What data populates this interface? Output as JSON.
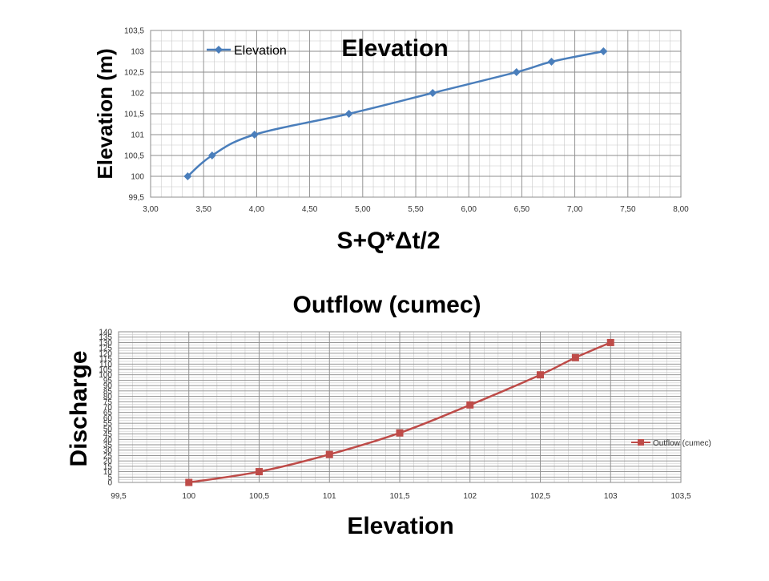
{
  "chart_data": [
    {
      "type": "line",
      "title": "Elevation",
      "xlabel": "S+Q*Δt/2",
      "ylabel": "Elevation (m)",
      "xlim": [
        3.0,
        8.0
      ],
      "ylim": [
        99.5,
        103.5
      ],
      "x_ticks": [
        "3,00",
        "3,50",
        "4,00",
        "4,50",
        "5,00",
        "5,50",
        "6,00",
        "6,50",
        "7,00",
        "7,50",
        "8,00"
      ],
      "y_ticks": [
        "99,5",
        "100",
        "100,5",
        "101",
        "101,5",
        "102",
        "102,5",
        "103",
        "103,5"
      ],
      "grid": true,
      "legend": "top-left",
      "series": [
        {
          "name": "Elevation",
          "color": "#4a7ebb",
          "marker": "diamond",
          "x": [
            3.35,
            3.58,
            3.98,
            4.87,
            5.66,
            6.45,
            6.78,
            7.27
          ],
          "y": [
            100,
            100.5,
            101,
            101.5,
            102,
            102.5,
            102.75,
            103
          ]
        }
      ]
    },
    {
      "type": "line",
      "title": "Outflow (cumec)",
      "xlabel": "Elevation",
      "ylabel": "Discharge",
      "xlim": [
        99.5,
        103.5
      ],
      "ylim": [
        0,
        140
      ],
      "x_ticks": [
        "99,5",
        "100",
        "100,5",
        "101",
        "101,5",
        "102",
        "102,5",
        "103",
        "103,5"
      ],
      "y_ticks": [
        "0",
        "5",
        "10",
        "15",
        "20",
        "25",
        "30",
        "35",
        "40",
        "45",
        "50",
        "55",
        "60",
        "65",
        "70",
        "75",
        "80",
        "85",
        "90",
        "95",
        "100",
        "105",
        "110",
        "115",
        "120",
        "125",
        "130",
        "135",
        "140"
      ],
      "grid": true,
      "legend": "right",
      "series": [
        {
          "name": "Outflow (cumec)",
          "color": "#be4b48",
          "marker": "square",
          "x": [
            100,
            100.5,
            101,
            101.5,
            102,
            102.5,
            102.75,
            103
          ],
          "y": [
            0,
            10,
            26,
            46,
            72,
            100,
            116,
            130
          ]
        }
      ]
    }
  ]
}
